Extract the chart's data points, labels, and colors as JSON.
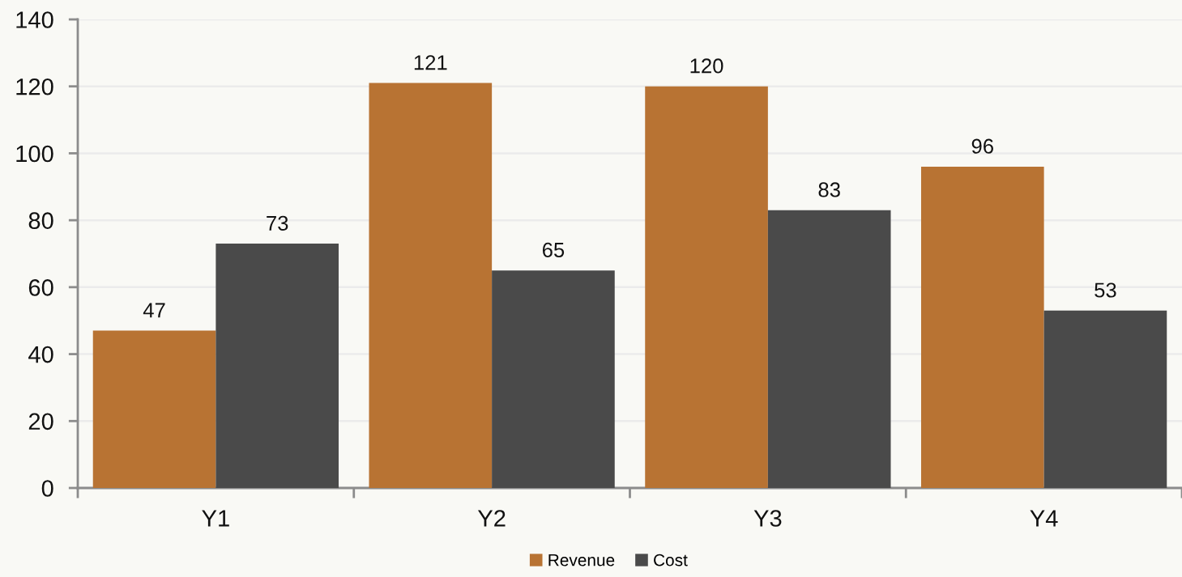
{
  "chart_data": {
    "type": "bar",
    "categories": [
      "Y1",
      "Y2",
      "Y3",
      "Y4"
    ],
    "series": [
      {
        "name": "Revenue",
        "color": "#b87333",
        "values": [
          47,
          121,
          120,
          96
        ]
      },
      {
        "name": "Cost",
        "color": "#4a4a4a",
        "values": [
          73,
          65,
          83,
          53
        ]
      }
    ],
    "ylim": [
      0,
      140
    ],
    "yticks": [
      0,
      20,
      40,
      60,
      80,
      100,
      120,
      140
    ],
    "grid": "y",
    "legend": "bottom",
    "data_labels": true
  }
}
